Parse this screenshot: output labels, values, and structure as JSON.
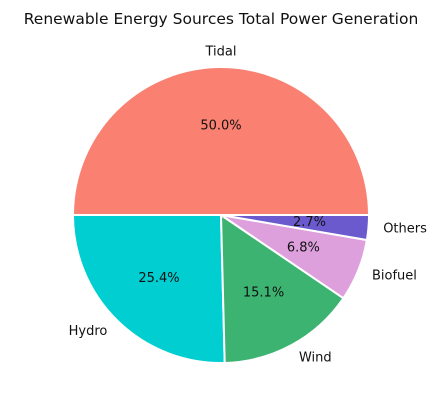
{
  "chart_data": {
    "type": "pie",
    "title": "Renewable Energy Sources Total Power Generation",
    "slices": [
      {
        "label": "Tidal",
        "value": 50.0,
        "pct_label": "50.0%",
        "color": "#FA8072"
      },
      {
        "label": "Hydro",
        "value": 25.4,
        "pct_label": "25.4%",
        "color": "#00CED1"
      },
      {
        "label": "Wind",
        "value": 15.1,
        "pct_label": "15.1%",
        "color": "#3CB371"
      },
      {
        "label": "Biofuel",
        "value": 6.8,
        "pct_label": "6.8%",
        "color": "#DDA0DD"
      },
      {
        "label": "Others",
        "value": 2.7,
        "pct_label": "2.7%",
        "color": "#6A5ACD"
      }
    ],
    "start_angle_deg": 0,
    "direction": "counterclockwise",
    "edge_color": "#FFFFFF"
  }
}
